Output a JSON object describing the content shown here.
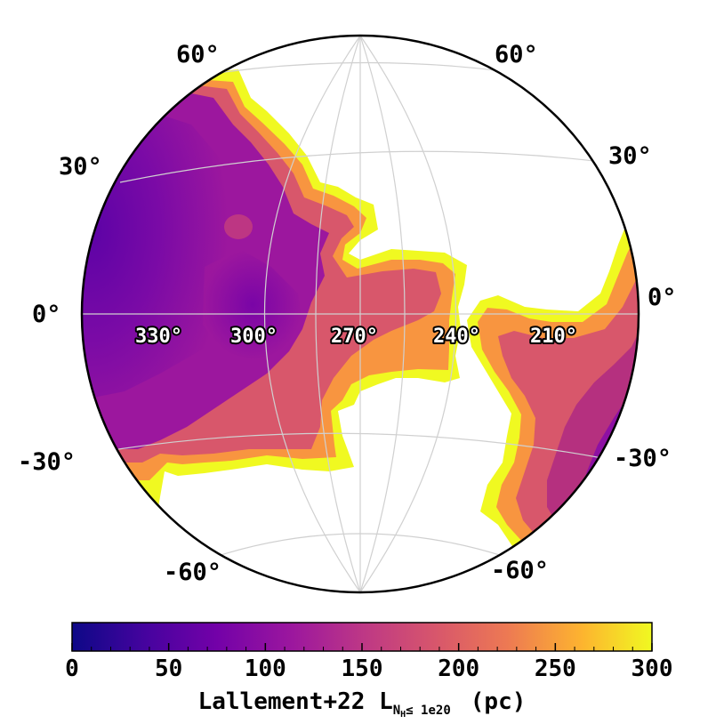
{
  "map": {
    "projection": "orthographic",
    "latitude_labels_left": [
      "60°",
      "30°",
      "0°",
      "-30°",
      "-60°"
    ],
    "latitude_labels_right": [
      "60°",
      "30°",
      "0°",
      "-30°",
      "-60°"
    ],
    "longitude_labels": [
      "330°",
      "300°",
      "270°",
      "240°",
      "210°"
    ],
    "graticule_color": "#cccccc",
    "no_data_color": "#ffffff"
  },
  "colorbar": {
    "colormap": "plasma",
    "vmin": 0,
    "vmax": 300,
    "tick_labels": [
      "0",
      "50",
      "100",
      "150",
      "200",
      "250",
      "300"
    ],
    "label_main": "Lallement+22 L",
    "label_sub": "N",
    "label_subsub": "H",
    "label_cond": "≤ 1e20",
    "label_unit": "(pc)"
  },
  "colors": {
    "plasma_0": "#0d0887",
    "plasma_25": "#7e03a8",
    "plasma_50": "#cc4778",
    "plasma_75": "#f89540",
    "plasma_100": "#f0f921"
  }
}
